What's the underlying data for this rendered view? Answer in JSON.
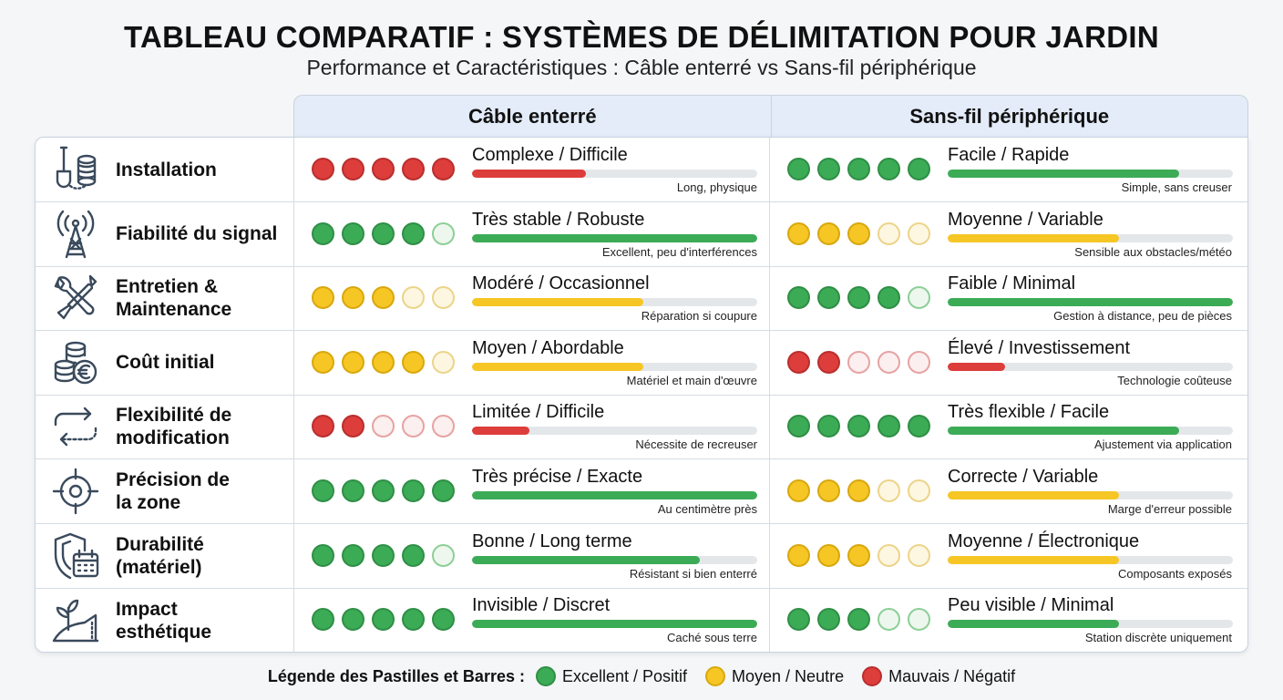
{
  "title": "TABLEAU COMPARATIF : SYSTÈMES DE DÉLIMITATION POUR JARDIN",
  "subtitle": "Performance et Caractéristiques : Câble enterré vs Sans-fil périphérique",
  "columns": [
    "Câble enterré",
    "Sans-fil périphérique"
  ],
  "colors": {
    "green": "#3cab56",
    "yellow": "#f6c625",
    "red": "#dd3d3b",
    "header_bg": "#e3ecf8"
  },
  "rows": [
    {
      "label": "Installation",
      "icon": "shovel-cable-reel-icon",
      "cable": {
        "title": "Complexe / Difficile",
        "note": "Long, physique",
        "color": "red",
        "dots": 5,
        "fill": 0.4
      },
      "wireless": {
        "title": "Facile / Rapide",
        "note": "Simple, sans creuser",
        "color": "green",
        "dots": 5,
        "fill": 0.81
      }
    },
    {
      "label": "Fiabilité du signal",
      "icon": "antenna-tower-icon",
      "cable": {
        "title": "Très stable / Robuste",
        "note": "Excellent, peu d'interférences",
        "color": "green",
        "dots": 4,
        "fill": 1.0
      },
      "wireless": {
        "title": "Moyenne / Variable",
        "note": "Sensible aux obstacles/météo",
        "color": "yellow",
        "dots": 3,
        "fill": 0.6
      }
    },
    {
      "label": "Entretien &\nMaintenance",
      "icon": "wrench-screwdriver-icon",
      "cable": {
        "title": "Modéré / Occasionnel",
        "note": "Réparation si coupure",
        "color": "yellow",
        "dots": 3,
        "fill": 0.6
      },
      "wireless": {
        "title": "Faible / Minimal",
        "note": "Gestion à distance, peu de pièces",
        "color": "green",
        "dots": 4,
        "fill": 1.0
      }
    },
    {
      "label": "Coût initial",
      "icon": "coins-euro-icon",
      "cable": {
        "title": "Moyen / Abordable",
        "note": "Matériel et main d'œuvre",
        "color": "yellow",
        "dots": 4,
        "fill": 0.6
      },
      "wireless": {
        "title": "Élevé / Investissement",
        "note": "Technologie coûteuse",
        "color": "red",
        "dots": 2,
        "fill": 0.2
      }
    },
    {
      "label": "Flexibilité de\nmodification",
      "icon": "dashed-loop-arrows-icon",
      "cable": {
        "title": "Limitée / Difficile",
        "note": "Nécessite de recreuser",
        "color": "red",
        "dots": 2,
        "fill": 0.2
      },
      "wireless": {
        "title": "Très flexible / Facile",
        "note": "Ajustement via application",
        "color": "green",
        "dots": 5,
        "fill": 0.81
      }
    },
    {
      "label": "Précision de\nla zone",
      "icon": "crosshair-target-icon",
      "cable": {
        "title": "Très précise / Exacte",
        "note": "Au centimètre près",
        "color": "green",
        "dots": 5,
        "fill": 1.0
      },
      "wireless": {
        "title": "Correcte / Variable",
        "note": "Marge d'erreur possible",
        "color": "yellow",
        "dots": 3,
        "fill": 0.6
      }
    },
    {
      "label": "Durabilité\n(matériel)",
      "icon": "shield-calendar-icon",
      "cable": {
        "title": "Bonne / Long terme",
        "note": "Résistant si bien enterré",
        "color": "green",
        "dots": 4,
        "fill": 0.8
      },
      "wireless": {
        "title": "Moyenne / Électronique",
        "note": "Composants exposés",
        "color": "yellow",
        "dots": 3,
        "fill": 0.6
      }
    },
    {
      "label": "Impact\nesthétique",
      "icon": "plant-hill-icon",
      "cable": {
        "title": "Invisible / Discret",
        "note": "Caché sous terre",
        "color": "green",
        "dots": 5,
        "fill": 1.0
      },
      "wireless": {
        "title": "Peu visible / Minimal",
        "note": "Station discrète uniquement",
        "color": "green",
        "dots": 3,
        "fill": 0.6
      }
    }
  ],
  "legend": {
    "title": "Légende des Pastilles et Barres :",
    "items": [
      {
        "label": "Excellent / Positif",
        "color": "green"
      },
      {
        "label": "Moyen / Neutre",
        "color": "yellow"
      },
      {
        "label": "Mauvais / Négatif",
        "color": "red"
      }
    ]
  }
}
